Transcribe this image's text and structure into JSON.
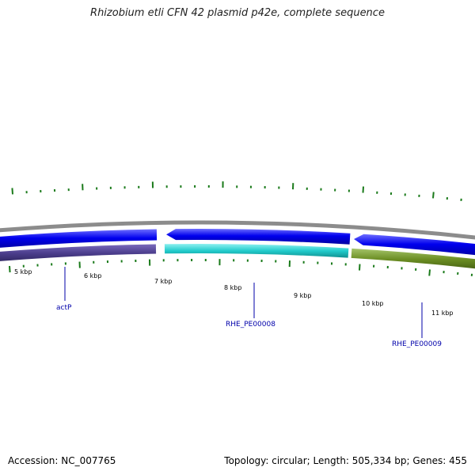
{
  "title": "Rhizobium etli CFN 42 plasmid p42e, complete sequence",
  "footer": {
    "accession": "Accession: NC_007765",
    "summary": "Topology: circular; Length: 505,334 bp; Genes: 455"
  },
  "colors": {
    "backbone": "#8c8c8c",
    "forward_strand": "#0000ee",
    "ticks": "#1a7a1a",
    "label_line": "#0000aa",
    "gene_label": "#0000aa"
  },
  "scale_labels": [
    "5 kbp",
    "6 kbp",
    "7 kbp",
    "8 kbp",
    "9 kbp",
    "10 kbp",
    "11 kbp"
  ],
  "forward_features": [
    {
      "id": "fwd-1",
      "color": "#0000ee"
    },
    {
      "id": "fwd-2",
      "color": "#0000ee"
    },
    {
      "id": "fwd-3",
      "color": "#0000ee"
    }
  ],
  "genes": [
    {
      "name": "actP",
      "color": "#4b3d8c"
    },
    {
      "name": "RHE_PE00008",
      "color": "#22cccc"
    },
    {
      "name": "RHE_PE00009",
      "color": "#6b8e23"
    }
  ]
}
